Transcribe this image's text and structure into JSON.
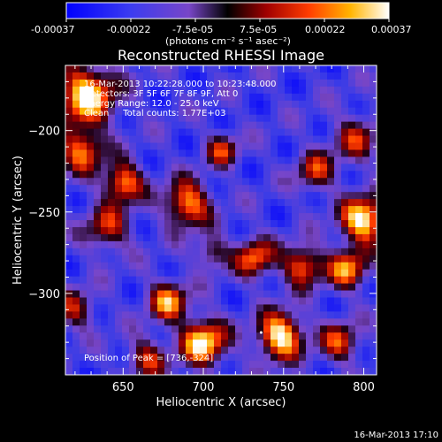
{
  "colorbar": {
    "tick_labels": [
      "-0.00037",
      "-0.00022",
      "-7.5e-05",
      "7.5e-05",
      "0.00022",
      "0.00037"
    ],
    "unit_label": "(photons cm⁻² s⁻¹ asec⁻²)",
    "range": [
      -0.00037,
      0.00037
    ]
  },
  "chart_data": {
    "type": "heatmap",
    "title": "Reconstructed RHESSI Image",
    "xlabel": "Heliocentric X (arcsec)",
    "ylabel": "Heliocentric Y (arcsec)",
    "xlim": [
      614,
      808
    ],
    "ylim": [
      -350,
      -160
    ],
    "x_ticks": [
      650,
      700,
      750,
      800
    ],
    "y_ticks": [
      -200,
      -250,
      -300
    ],
    "annotations": [
      "16-Mar-2013 10:22:28.000 to 10:23:48.000",
      "Detectors: 3F 5F 6F 7F 8F 9F, Att 0",
      "Energy Range: 12.0 - 25.0 keV",
      "Clean     Total counts: 1.77E+03"
    ],
    "peak_label": "Position of Peak = [736,-324]",
    "peak": [
      736,
      -324
    ],
    "grid": false,
    "colormap": "blue-purple-red-yellow-white",
    "blobs": [
      {
        "x": 627,
        "y": -178,
        "v": 0.95,
        "s": 18
      },
      {
        "x": 624,
        "y": -212,
        "v": 0.7,
        "s": 14
      },
      {
        "x": 650,
        "y": -232,
        "v": 0.8,
        "s": 12
      },
      {
        "x": 640,
        "y": -260,
        "v": 0.55,
        "s": 14
      },
      {
        "x": 690,
        "y": -245,
        "v": 0.8,
        "s": 14
      },
      {
        "x": 712,
        "y": -212,
        "v": 0.55,
        "s": 10
      },
      {
        "x": 770,
        "y": -225,
        "v": 0.55,
        "s": 12
      },
      {
        "x": 795,
        "y": -205,
        "v": 0.5,
        "s": 14
      },
      {
        "x": 800,
        "y": -255,
        "v": 1.0,
        "s": 14
      },
      {
        "x": 790,
        "y": -285,
        "v": 0.75,
        "s": 12
      },
      {
        "x": 732,
        "y": -278,
        "v": 0.7,
        "s": 12
      },
      {
        "x": 762,
        "y": -283,
        "v": 0.75,
        "s": 12
      },
      {
        "x": 678,
        "y": -305,
        "v": 0.75,
        "s": 12
      },
      {
        "x": 700,
        "y": -330,
        "v": 0.95,
        "s": 14
      },
      {
        "x": 748,
        "y": -326,
        "v": 1.0,
        "s": 14
      },
      {
        "x": 785,
        "y": -330,
        "v": 0.6,
        "s": 12
      },
      {
        "x": 665,
        "y": -340,
        "v": 0.55,
        "s": 12
      },
      {
        "x": 705,
        "y": -275,
        "v": 0.45,
        "s": 10
      },
      {
        "x": 620,
        "y": -310,
        "v": 0.5,
        "s": 12
      }
    ]
  },
  "footer": {
    "timestamp": "16-Mar-2013 17:10"
  }
}
